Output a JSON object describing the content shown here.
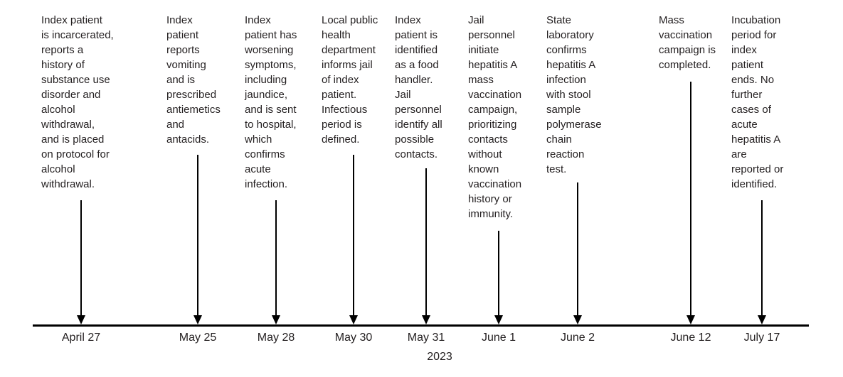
{
  "figure": {
    "year_label": "2023",
    "colors": {
      "text": "#231f20",
      "line": "#000000",
      "background": "#ffffff"
    },
    "events": [
      {
        "date": "April 27",
        "text": "Index patient is incarcerated, reports a history of substance use disorder and alcohol withdrawal, and is placed on protocol for alcohol withdrawal.",
        "lines": [
          "Index patient",
          "is incarcerated,",
          "reports a",
          "history of",
          "substance use",
          "disorder and",
          "alcohol",
          "withdrawal,",
          "and is placed",
          "on protocol for",
          "alcohol",
          "withdrawal."
        ]
      },
      {
        "date": "May 25",
        "text": "Index patient reports vomiting and is prescribed antiemetics and antacids.",
        "lines": [
          "Index",
          "patient",
          "reports",
          "vomiting",
          "and is",
          "prescribed",
          "antiemetics",
          "and",
          "antacids."
        ]
      },
      {
        "date": "May 28",
        "text": "Index patient has worsening symptoms, including jaundice, and is sent to hospital, which confirms acute infection.",
        "lines": [
          "Index",
          "patient has",
          "worsening",
          "symptoms,",
          "including",
          "jaundice,",
          "and is sent",
          "to hospital,",
          "which",
          "confirms",
          "acute",
          "infection."
        ]
      },
      {
        "date": "May 30",
        "text": "Local public health department informs jail of index patient. Infectious period is defined.",
        "lines": [
          "Local public",
          "health",
          "department",
          "informs jail",
          "of index",
          "patient.",
          "Infectious",
          "period is",
          "defined."
        ]
      },
      {
        "date": "May 31",
        "text": "Index patient is identified as a food handler. Jail personnel identify all possible contacts.",
        "lines": [
          "Index",
          "patient is",
          "identified",
          "as a food",
          "handler.",
          "Jail",
          "personnel",
          "identify all",
          "possible",
          "contacts."
        ]
      },
      {
        "date": "June 1",
        "text": "Jail personnel initiate hepatitis A mass vaccination campaign, prioritizing contacts without known vaccination history or immunity.",
        "lines": [
          "Jail",
          "personnel",
          "initiate",
          "hepatitis A",
          "mass",
          "vaccination",
          "campaign,",
          "prioritizing",
          "contacts",
          "without",
          "known",
          "vaccination",
          "history or",
          "immunity."
        ]
      },
      {
        "date": "June 2",
        "text": "State laboratory confirms hepatitis A infection with stool sample polymerase chain reaction test.",
        "lines": [
          "State",
          "laboratory",
          "confirms",
          "hepatitis A",
          "infection",
          "with stool",
          "sample",
          "polymerase",
          "chain",
          "reaction",
          "test."
        ]
      },
      {
        "date": "June 12",
        "text": "Mass vaccination campaign is completed.",
        "lines": [
          "Mass",
          "vaccination",
          "campaign is",
          "completed."
        ]
      },
      {
        "date": "July 17",
        "text": "Incubation period for index patient ends. No further cases of acute hepatitis A are reported or identified.",
        "lines": [
          "Incubation",
          "period for",
          "index",
          "patient",
          "ends. No",
          "further",
          "cases of",
          "acute",
          "hepatitis A",
          "are",
          "reported or",
          "identified."
        ]
      }
    ]
  }
}
